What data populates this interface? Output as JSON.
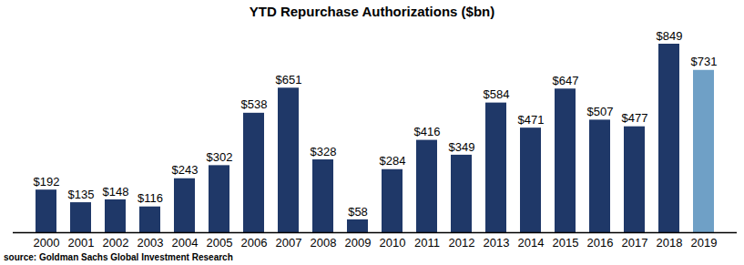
{
  "chart_data": {
    "type": "bar",
    "title": "YTD Repurchase Authorizations ($bn)",
    "caption": "source: Goldman Sachs Global Investment Research",
    "categories": [
      "2000",
      "2001",
      "2002",
      "2003",
      "2004",
      "2005",
      "2006",
      "2007",
      "2008",
      "2009",
      "2010",
      "2011",
      "2012",
      "2013",
      "2014",
      "2015",
      "2016",
      "2017",
      "2018",
      "2019"
    ],
    "values": [
      192,
      135,
      148,
      116,
      243,
      302,
      538,
      651,
      328,
      58,
      284,
      416,
      349,
      584,
      471,
      647,
      507,
      477,
      849,
      731
    ],
    "value_labels": [
      "$192",
      "$135",
      "$148",
      "$116",
      "$243",
      "$302",
      "$538",
      "$651",
      "$328",
      "$58",
      "$284",
      "$416",
      "$349",
      "$584",
      "$471",
      "$647",
      "$507",
      "$477",
      "$849",
      "$731"
    ],
    "colors": [
      "#1f3868",
      "#1f3868",
      "#1f3868",
      "#1f3868",
      "#1f3868",
      "#1f3868",
      "#1f3868",
      "#1f3868",
      "#1f3868",
      "#1f3868",
      "#1f3868",
      "#1f3868",
      "#1f3868",
      "#1f3868",
      "#1f3868",
      "#1f3868",
      "#1f3868",
      "#1f3868",
      "#1f3868",
      "#6fa0c6"
    ],
    "data_labels": true,
    "tick_labels": "x",
    "grid": false
  }
}
